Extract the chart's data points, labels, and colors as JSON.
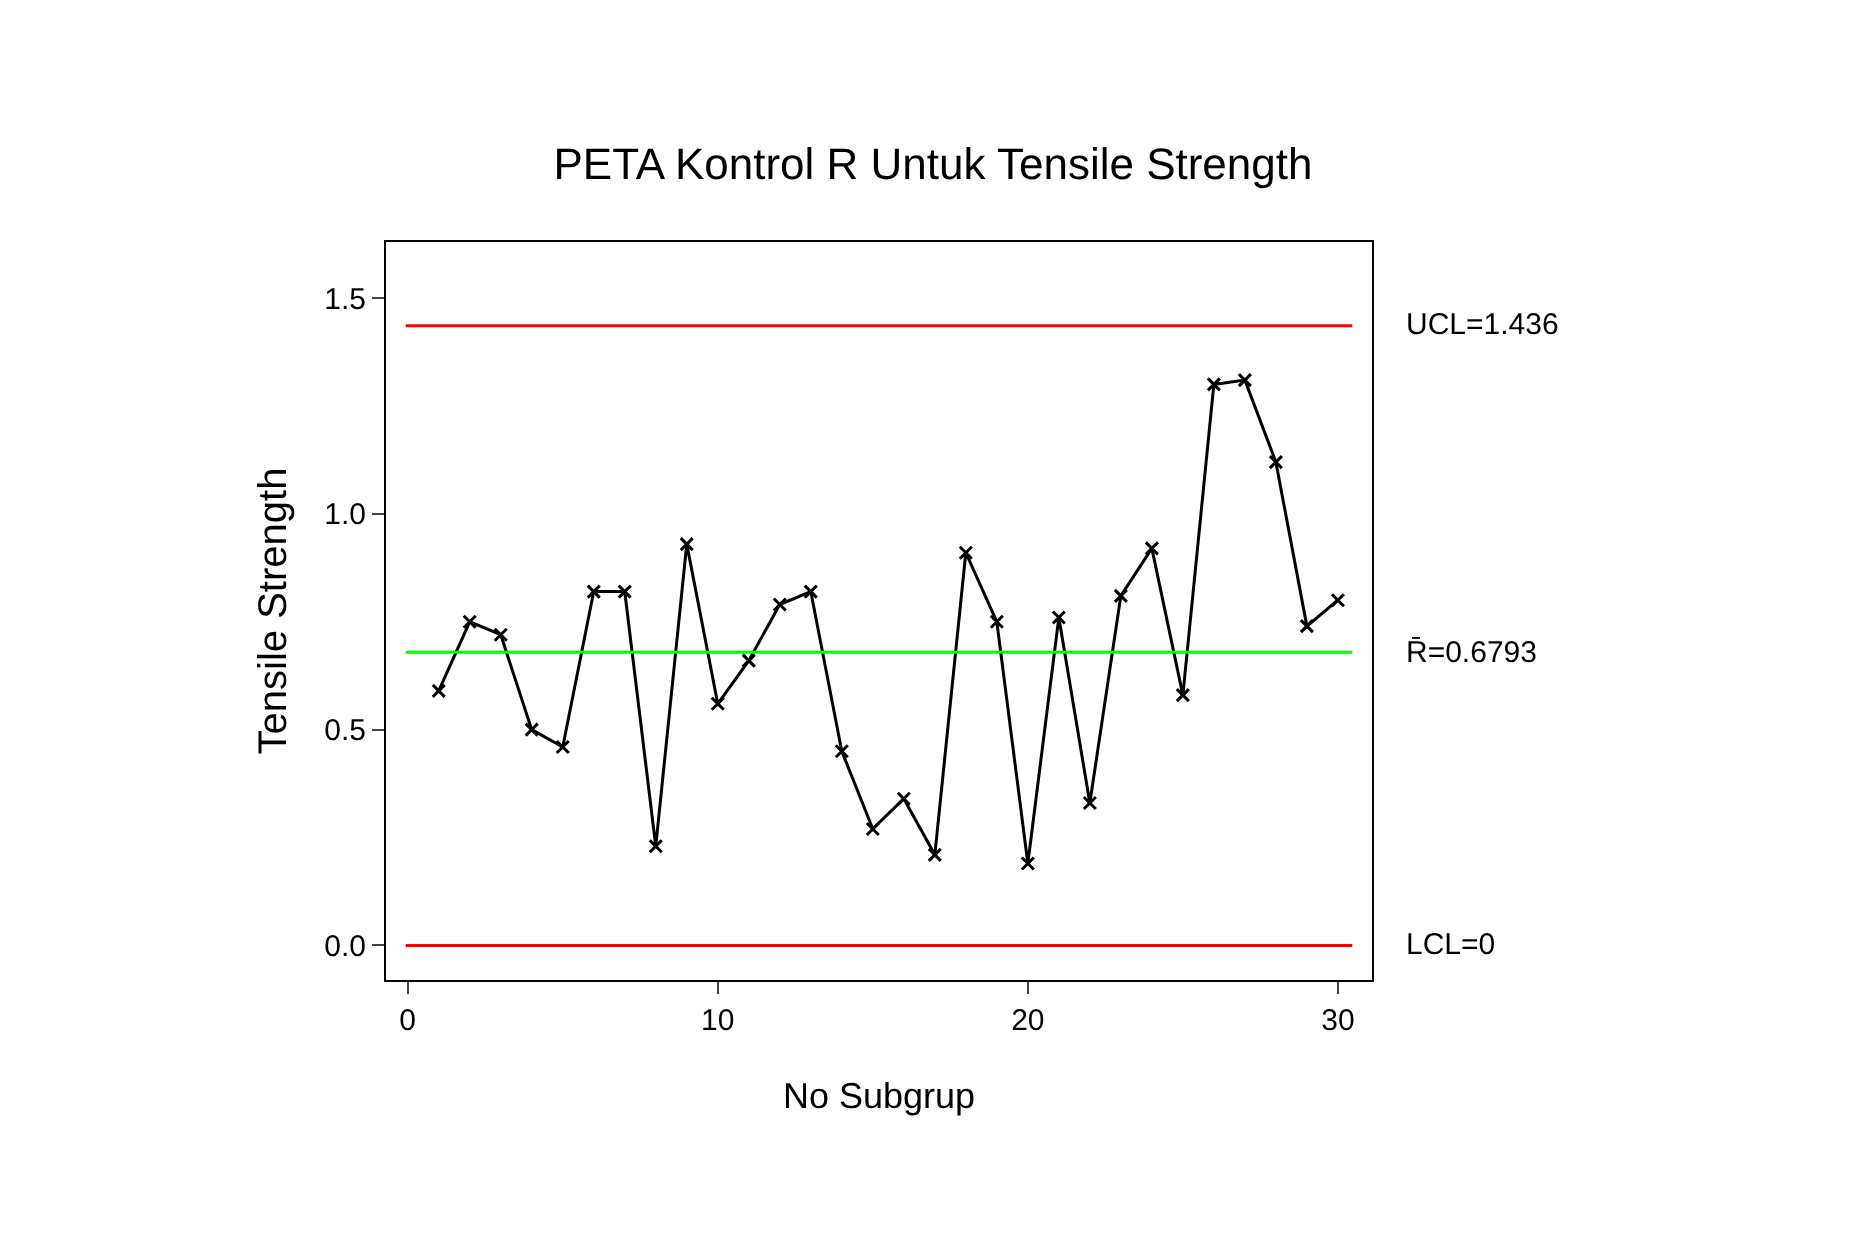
{
  "chart_data": {
    "type": "line",
    "title": "PETA Kontrol R Untuk Tensile Strength",
    "xlabel": "No Subgrup",
    "ylabel": "Tensile Strength",
    "x": [
      1,
      2,
      3,
      4,
      5,
      6,
      7,
      8,
      9,
      10,
      11,
      12,
      13,
      14,
      15,
      16,
      17,
      18,
      19,
      20,
      21,
      22,
      23,
      24,
      25,
      26,
      27,
      28,
      29,
      30
    ],
    "series": [
      {
        "color": "#000000",
        "values": [
          0.59,
          0.75,
          0.72,
          0.5,
          0.46,
          0.82,
          0.82,
          0.23,
          0.93,
          0.56,
          0.66,
          0.79,
          0.82,
          0.45,
          0.27,
          0.34,
          0.21,
          0.91,
          0.75,
          0.19,
          0.76,
          0.33,
          0.81,
          0.92,
          0.58,
          1.3,
          1.31,
          1.12,
          0.74,
          0.8
        ]
      }
    ],
    "xlim": [
      -0.7,
      31.1
    ],
    "xticks": [
      0,
      10,
      20,
      30
    ],
    "ylim": [
      -0.08,
      1.63
    ],
    "yticks": [
      {
        "value": 0,
        "label": "0.0"
      },
      {
        "value": 0.5,
        "label": "0.5"
      },
      {
        "value": 1,
        "label": "1.0"
      },
      {
        "value": 1.5,
        "label": "1.5"
      }
    ],
    "ref_lines": [
      {
        "axis": "y",
        "value": 1.436,
        "label": "UCL=1.436",
        "color": "#ff0000"
      },
      {
        "axis": "y",
        "value": 0.6793,
        "label": "R̄=0.6793",
        "color": "#00ff00"
      },
      {
        "axis": "y",
        "value": 0,
        "label": "LCL=0",
        "color": "#ff0000"
      }
    ],
    "grid": false,
    "marker": "cross",
    "line_style": "solid"
  }
}
